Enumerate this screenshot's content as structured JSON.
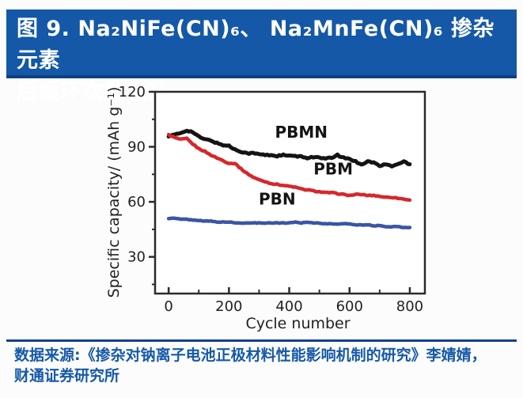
{
  "banner": {
    "line1": "图 9. Na₂NiFe(CN)₆、 Na₂MnFe(CN)₆ 掺杂元素",
    "line2": "后循环次数上升",
    "bg_color": "#1458A7",
    "text_color": "#FFFFFF"
  },
  "chart_data": {
    "type": "line",
    "title": "",
    "xlabel": "Cycle number",
    "ylabel": "Specific capacity/ (mAh g⁻¹)",
    "xlim": [
      -45,
      850
    ],
    "ylim": [
      10,
      120
    ],
    "x_ticks": [
      0,
      200,
      400,
      600,
      800
    ],
    "x_minor_ticks": [
      100,
      300,
      500,
      700
    ],
    "y_ticks": [
      30,
      60,
      90,
      120
    ],
    "y_minor_ticks": [
      15,
      45,
      75,
      105
    ],
    "grid": false,
    "legend_position": "inline-labels",
    "axis_color": "#2b2b2b",
    "x": [
      0,
      20,
      40,
      60,
      80,
      100,
      120,
      140,
      160,
      180,
      200,
      220,
      240,
      260,
      280,
      300,
      320,
      340,
      360,
      380,
      400,
      420,
      440,
      460,
      480,
      500,
      520,
      540,
      560,
      580,
      600,
      620,
      640,
      660,
      680,
      700,
      720,
      740,
      760,
      780,
      800
    ],
    "series": [
      {
        "name": "PBMN",
        "color": "#141414",
        "label_at": {
          "x": 440,
          "y": 95
        },
        "values": [
          96,
          96.5,
          97.5,
          99,
          98,
          95.5,
          94,
          93.5,
          92,
          91,
          90.5,
          88.5,
          87.5,
          86.5,
          86.5,
          86,
          85.5,
          85.5,
          85,
          85.5,
          85,
          85,
          84.5,
          84,
          84.5,
          84,
          83.5,
          84,
          85.5,
          84,
          83.5,
          82,
          80.5,
          82,
          81.5,
          79.5,
          80.5,
          79.5,
          80.5,
          82,
          80.5
        ]
      },
      {
        "name": "PBM",
        "color": "#D5282B",
        "label_at": {
          "x": 546,
          "y": 75
        },
        "values": [
          96.5,
          95,
          94,
          94.5,
          91.5,
          89,
          87.5,
          85.5,
          84,
          82.5,
          81,
          81,
          78,
          75.5,
          73.5,
          72,
          71,
          70,
          69.5,
          69,
          68.5,
          68,
          67,
          66.5,
          66,
          65.5,
          65,
          65,
          64.5,
          64,
          63.5,
          64,
          64,
          63.5,
          63.5,
          63,
          62.5,
          62.5,
          62,
          61.5,
          61
        ]
      },
      {
        "name": "PBN",
        "color": "#3A55A5",
        "label_at": {
          "x": 360,
          "y": 58.5
        },
        "values": [
          51,
          51,
          50.5,
          50.5,
          50,
          50,
          49.5,
          49.5,
          49,
          49,
          49,
          48.5,
          48.5,
          48.5,
          48.5,
          48.5,
          48.5,
          48.5,
          48.5,
          48.5,
          48.5,
          49,
          48.5,
          49,
          48.5,
          48.5,
          48,
          48,
          48,
          48,
          48,
          47.5,
          47.5,
          47.5,
          47,
          47,
          46.5,
          46.5,
          46.5,
          46,
          46
        ]
      }
    ]
  },
  "source": {
    "line1": "数据来源:《掺杂对钠离子电池正极材料性能影响机制的研究》李婧婧，",
    "line2": "财通证券研究所",
    "text_color": "#1659A9"
  }
}
